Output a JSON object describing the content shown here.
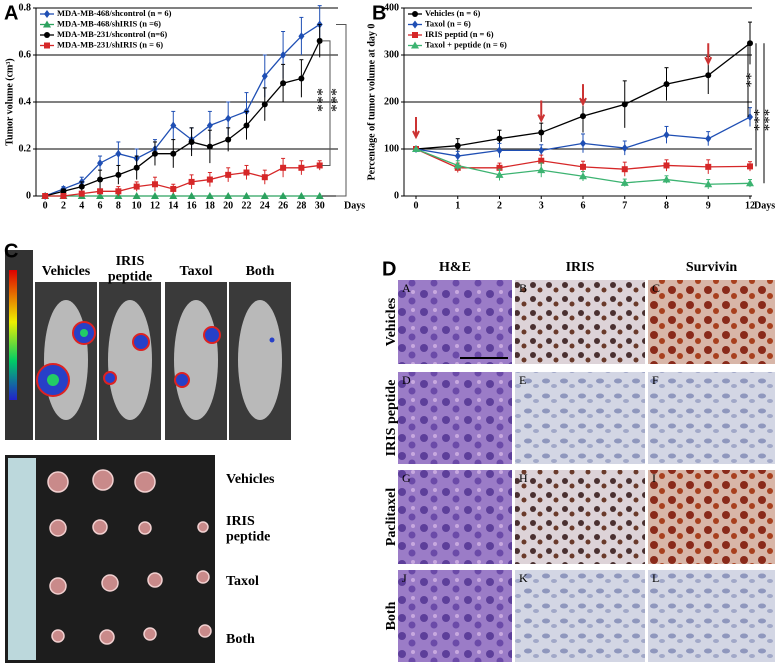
{
  "chart_data": [
    {
      "type": "line",
      "ylabel": "Tumor volume (cm³)",
      "xlabel": "Days",
      "x": [
        0,
        2,
        4,
        6,
        8,
        10,
        12,
        14,
        16,
        18,
        20,
        22,
        24,
        26,
        28,
        30
      ],
      "xlim": [
        -1,
        32
      ],
      "xticks": [
        0,
        2,
        4,
        6,
        8,
        10,
        12,
        14,
        16,
        18,
        20,
        22,
        24,
        26,
        28,
        30
      ],
      "ylim": [
        0,
        0.8
      ],
      "yticks": [
        0,
        0.2,
        0.4,
        0.6,
        0.8
      ],
      "grid": true,
      "series": [
        {
          "name": "MDA-MB-468/shcontrol (n = 6)",
          "color": "#1f4fb4",
          "marker": "diamond",
          "values": [
            0,
            0.03,
            0.06,
            0.14,
            0.18,
            0.16,
            0.2,
            0.3,
            0.24,
            0.3,
            0.33,
            0.36,
            0.51,
            0.6,
            0.68,
            0.73
          ],
          "errors": [
            0,
            0.01,
            0.02,
            0.03,
            0.05,
            0.04,
            0.04,
            0.06,
            0.05,
            0.06,
            0.07,
            0.08,
            0.09,
            0.1,
            0.08,
            0.08
          ]
        },
        {
          "name": "MDA-MB-468/shIRIS (n =6)",
          "color": "#2ca25f",
          "marker": "triangle",
          "values": [
            0,
            0,
            0,
            0,
            0,
            0,
            0,
            0,
            0,
            0,
            0,
            0,
            0,
            0,
            0,
            0
          ],
          "errors": [
            0,
            0,
            0,
            0,
            0,
            0,
            0,
            0,
            0,
            0,
            0,
            0,
            0,
            0,
            0,
            0
          ]
        },
        {
          "name": "MDA-MB-231/shcontrol (n=6)",
          "color": "#000000",
          "marker": "circle",
          "values": [
            0,
            0.02,
            0.04,
            0.07,
            0.09,
            0.12,
            0.18,
            0.18,
            0.23,
            0.21,
            0.24,
            0.3,
            0.39,
            0.48,
            0.5,
            0.66
          ],
          "errors": [
            0,
            0.01,
            0.02,
            0.04,
            0.04,
            0.05,
            0.05,
            0.06,
            0.06,
            0.07,
            0.05,
            0.06,
            0.07,
            0.08,
            0.08,
            0.07
          ]
        },
        {
          "name": "MDA-MB-231/shIRIS (n = 6)",
          "color": "#d62728",
          "marker": "square",
          "values": [
            0,
            0,
            0.01,
            0.02,
            0.02,
            0.04,
            0.05,
            0.03,
            0.06,
            0.07,
            0.09,
            0.1,
            0.08,
            0.12,
            0.12,
            0.13
          ],
          "errors": [
            0,
            0,
            0.01,
            0.01,
            0.02,
            0.02,
            0.03,
            0.02,
            0.03,
            0.03,
            0.03,
            0.03,
            0.03,
            0.04,
            0.03,
            0.02
          ]
        }
      ],
      "annotations": [
        "***",
        "***"
      ]
    },
    {
      "type": "line",
      "ylabel": "Percentage of tumor volume at day 0",
      "xlabel": "Days",
      "categories": [
        "0",
        "1",
        "2",
        "3",
        "6",
        "7",
        "8",
        "9",
        "12"
      ],
      "ylim": [
        0,
        400
      ],
      "yticks": [
        0,
        100,
        200,
        300,
        400
      ],
      "grid": true,
      "series": [
        {
          "name": "Vehicles (n = 6)",
          "color": "#000000",
          "marker": "circle",
          "values": [
            100,
            107,
            122,
            135,
            170,
            195,
            238,
            257,
            325
          ],
          "errors": [
            0,
            15,
            18,
            20,
            35,
            50,
            35,
            40,
            45
          ]
        },
        {
          "name": "Taxol (n = 6)",
          "color": "#1f4fb4",
          "marker": "diamond",
          "values": [
            100,
            85,
            97,
            97,
            112,
            102,
            130,
            122,
            168
          ],
          "errors": [
            0,
            10,
            15,
            12,
            20,
            15,
            18,
            15,
            20
          ]
        },
        {
          "name": "IRIS peptid (n = 6)",
          "color": "#d62728",
          "marker": "square",
          "values": [
            100,
            60,
            60,
            75,
            62,
            57,
            65,
            62,
            63
          ],
          "errors": [
            0,
            10,
            10,
            12,
            12,
            15,
            12,
            15,
            10
          ]
        },
        {
          "name": "Taxol + peptide (n = 6)",
          "color": "#3cb371",
          "marker": "triangle",
          "values": [
            100,
            65,
            45,
            55,
            42,
            28,
            35,
            25,
            27
          ],
          "errors": [
            0,
            10,
            12,
            15,
            10,
            8,
            8,
            10,
            8
          ]
        }
      ],
      "annotations": [
        "**",
        "***",
        "***"
      ]
    }
  ],
  "panel_labels": [
    "A",
    "B",
    "C",
    "D"
  ],
  "panel_c": {
    "top_labels": [
      "Vehicles",
      "IRIS peptide",
      "Taxol",
      "Both"
    ],
    "bottom_labels": [
      "Vehicles",
      "IRIS peptide",
      "Taxol",
      "Both"
    ]
  },
  "panel_d": {
    "columns": [
      "H&E",
      "IRIS",
      "Survivin"
    ],
    "rows": [
      "Vehicles",
      "IRIS peptide",
      "Paclitaxel",
      "Both"
    ],
    "cells": [
      "A",
      "B",
      "C",
      "D",
      "E",
      "F",
      "G",
      "H",
      "I",
      "J",
      "K",
      "L"
    ]
  }
}
